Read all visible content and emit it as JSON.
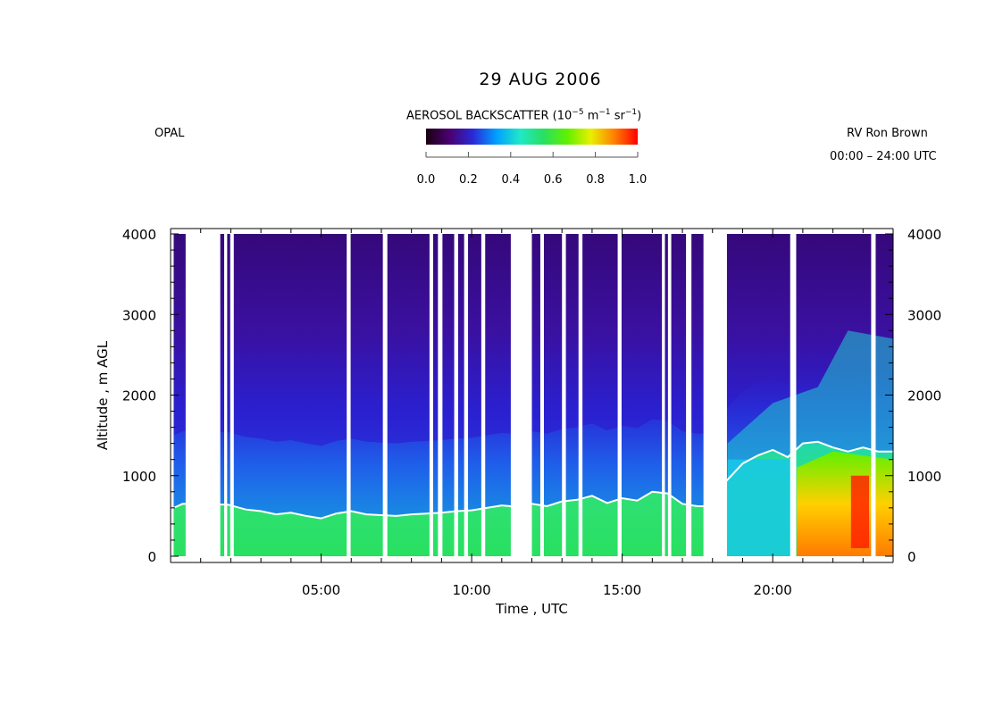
{
  "header": {
    "title": "29 AUG 2006",
    "instrument": "OPAL",
    "platform": "RV Ron Brown",
    "time_range": "00:00 – 24:00 UTC"
  },
  "colorbar": {
    "label_main": "AEROSOL BACKSCATTER (10",
    "label_exp1": "−5",
    "label_mid": " m",
    "label_exp2": "−1",
    "label_mid2": " sr",
    "label_exp3": "−1",
    "label_end": ")",
    "ticks": [
      "0.0",
      "0.2",
      "0.4",
      "0.6",
      "0.8",
      "1.0"
    ],
    "colors": [
      "#1a0010",
      "#4a0070",
      "#2a2ad8",
      "#00a0ff",
      "#20e8c8",
      "#28e060",
      "#60f000",
      "#e8f000",
      "#ff8000",
      "#ff0000"
    ]
  },
  "chart_data": {
    "type": "heatmap",
    "title": "29 AUG 2006",
    "xlabel": "Time , UTC",
    "ylabel": "Altitude , m AGL",
    "x_range_hours": [
      0,
      24
    ],
    "y_range_m": [
      0,
      4000
    ],
    "xticks": [
      "05:00",
      "10:00",
      "15:00",
      "20:00"
    ],
    "xtick_hours": [
      5,
      10,
      15,
      20
    ],
    "yticks": [
      "0",
      "1000",
      "2000",
      "3000",
      "4000"
    ],
    "ytick_values": [
      0,
      1000,
      2000,
      3000,
      4000
    ],
    "z_label": "AEROSOL BACKSCATTER (10^-5 m^-1 sr^-1)",
    "z_range": [
      0.0,
      1.0
    ],
    "data_gaps_hours": [
      [
        0.5,
        1.65
      ],
      [
        1.78,
        1.88
      ],
      [
        1.98,
        2.1
      ],
      [
        5.85,
        5.98
      ],
      [
        7.05,
        7.2
      ],
      [
        8.6,
        8.72
      ],
      [
        8.88,
        9.03
      ],
      [
        9.42,
        9.55
      ],
      [
        9.75,
        9.88
      ],
      [
        10.32,
        10.45
      ],
      [
        11.3,
        12.0
      ],
      [
        12.28,
        12.4
      ],
      [
        13.0,
        13.13
      ],
      [
        13.55,
        13.68
      ],
      [
        14.85,
        14.98
      ],
      [
        16.32,
        16.42
      ],
      [
        16.52,
        16.63
      ],
      [
        17.12,
        17.3
      ],
      [
        17.7,
        18.48
      ],
      [
        20.58,
        20.78
      ],
      [
        23.27,
        23.42
      ]
    ],
    "boundary_layer_top": {
      "hours": [
        0.1,
        0.4,
        1.9,
        2.5,
        3.0,
        3.5,
        4.0,
        4.5,
        5.0,
        5.5,
        6.0,
        6.5,
        7.0,
        7.5,
        8.0,
        8.5,
        9.0,
        9.5,
        10.0,
        10.5,
        11.0,
        11.3,
        12.0,
        12.5,
        13.0,
        13.5,
        14.0,
        14.5,
        15.0,
        15.5,
        16.0,
        16.5,
        17.0,
        17.5,
        17.7,
        18.5,
        19.0,
        19.5,
        20.0,
        20.5,
        21.0,
        21.5,
        22.0,
        22.5,
        23.0,
        23.5,
        24.0
      ],
      "altitude_m": [
        600,
        650,
        640,
        580,
        560,
        520,
        540,
        500,
        470,
        530,
        560,
        520,
        510,
        500,
        520,
        530,
        540,
        560,
        570,
        600,
        630,
        620,
        650,
        620,
        680,
        700,
        750,
        660,
        720,
        690,
        800,
        780,
        650,
        620,
        620,
        950,
        1150,
        1250,
        1320,
        1230,
        1400,
        1420,
        1350,
        1300,
        1350,
        1300,
        1300
      ]
    }
  }
}
